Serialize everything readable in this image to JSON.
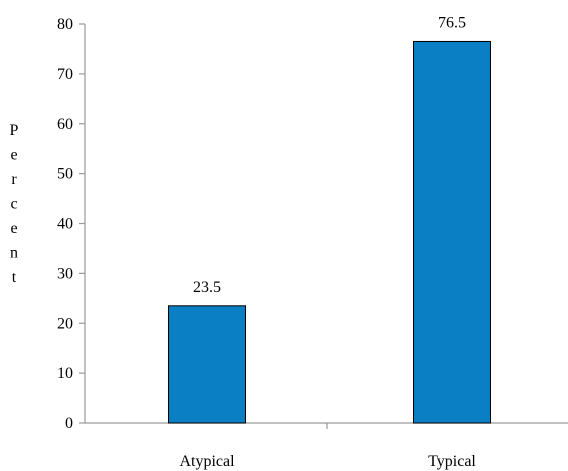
{
  "chart_data": {
    "type": "bar",
    "title": "",
    "xlabel": "",
    "ylabel": "Percent",
    "categories": [
      "Atypical",
      "Typical"
    ],
    "values": [
      23.5,
      76.5
    ],
    "data_labels": [
      "23.5",
      "76.5"
    ],
    "ylim": [
      0,
      80
    ],
    "yticks": [
      0,
      10,
      20,
      30,
      40,
      50,
      60,
      70,
      80
    ],
    "grid": false,
    "legend": "none",
    "colors": {
      "bar_fill": "#0a7fc4",
      "bar_stroke": "#000000",
      "axis": "#9a9a9a"
    }
  }
}
